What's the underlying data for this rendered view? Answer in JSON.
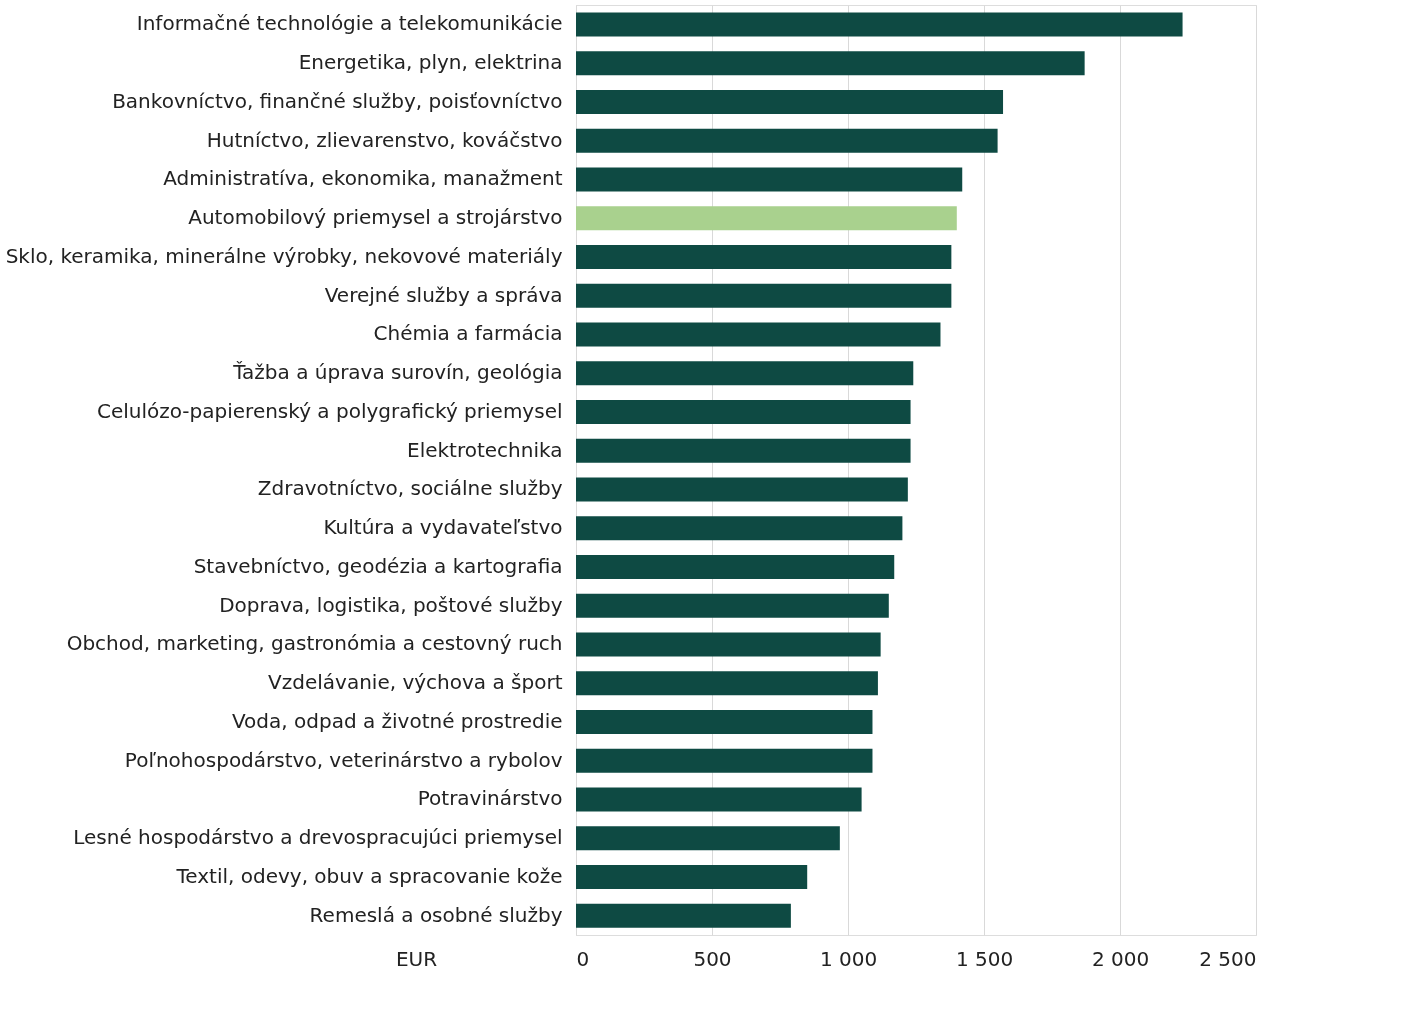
{
  "chart_data": {
    "type": "bar",
    "orientation": "horizontal",
    "categories": [
      "Informačné technológie a telekomunikácie",
      "Energetika, plyn, elektrina",
      "Bankovníctvo, finančné služby, poisťovníctvo",
      "Hutníctvo, zlievarenstvo, kováčstvo",
      "Administratíva, ekonomika, manažment",
      "Automobilový priemysel a strojárstvo",
      "Sklo, keramika, minerálne výrobky, nekovové materiály",
      "Verejné služby a správa",
      "Chémia a farmácia",
      "Ťažba a úprava surovín, geológia",
      "Celulózo-papierenský a polygrafický priemysel",
      "Elektrotechnika",
      "Zdravotníctvo, sociálne služby",
      "Kultúra a vydavateľstvo",
      "Stavebníctvo, geodézia a kartografia",
      "Doprava, logistika, poštové služby",
      "Obchod, marketing, gastronómia a cestovný ruch",
      "Vzdelávanie, výchova a šport",
      "Voda, odpad a životné prostredie",
      "Poľnohospodárstvo, veterinárstvo a rybolov",
      "Potravinárstvo",
      "Lesné hospodárstvo a drevospracujúci priemysel",
      "Textil, odevy, obuv a spracovanie kože",
      "Remeslá a osobné služby"
    ],
    "values": [
      2230,
      1870,
      1570,
      1550,
      1420,
      1400,
      1380,
      1380,
      1340,
      1240,
      1230,
      1230,
      1220,
      1200,
      1170,
      1150,
      1120,
      1110,
      1090,
      1090,
      1050,
      970,
      850,
      790
    ],
    "colors": [
      "#0e4a43",
      "#0e4a43",
      "#0e4a43",
      "#0e4a43",
      "#0e4a43",
      "#a9d18e",
      "#0e4a43",
      "#0e4a43",
      "#0e4a43",
      "#0e4a43",
      "#0e4a43",
      "#0e4a43",
      "#0e4a43",
      "#0e4a43",
      "#0e4a43",
      "#0e4a43",
      "#0e4a43",
      "#0e4a43",
      "#0e4a43",
      "#0e4a43",
      "#0e4a43",
      "#0e4a43",
      "#0e4a43",
      "#0e4a43"
    ],
    "xlabel": "EUR",
    "xlim": [
      0,
      2500
    ],
    "xticks": [
      0,
      500,
      {
        "value": 1000,
        "label": "1 000"
      },
      {
        "value": 1500,
        "label": "1 500"
      },
      {
        "value": 2000,
        "label": "2 000"
      },
      {
        "value": 2500,
        "label": "2 500"
      }
    ],
    "grid": "x",
    "legend": false
  }
}
